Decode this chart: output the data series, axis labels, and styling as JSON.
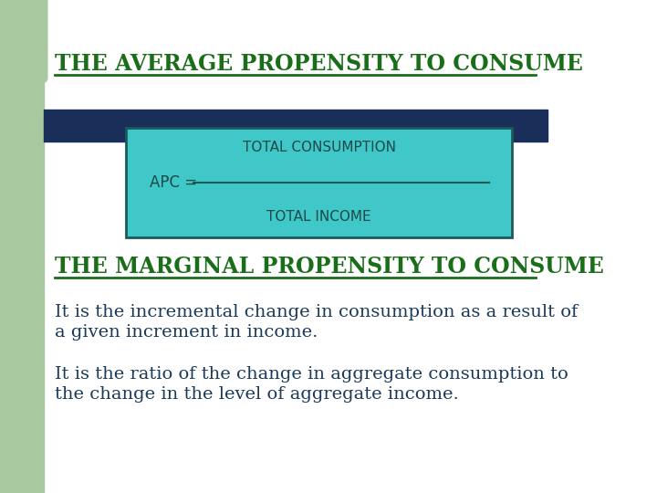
{
  "bg_color": "#ffffff",
  "left_bar_color": "#a8c8a0",
  "title1": "THE AVERAGE PROPENSITY TO CONSUME",
  "title1_color": "#1a6e1a",
  "title1_underline": true,
  "dark_bar_color": "#1a2e5a",
  "box_bg_color": "#40c8c8",
  "box_border_color": "#1a5a5a",
  "apc_label": "APC = ",
  "numerator": "TOTAL CONSUMPTION",
  "denominator": "TOTAL INCOME",
  "fraction_line_color": "#1a5a5a",
  "box_text_color": "#1a4a4a",
  "title2": "THE MARGINAL PROPENSITY TO CONSUME",
  "title2_color": "#1a6e1a",
  "title2_underline": true,
  "body_text_color": "#1a3a5a",
  "para1_line1": "It is the incremental change in consumption as a result of",
  "para1_line2": "a given increment in income.",
  "para2_line1": "It is the ratio of the change in aggregate consumption to",
  "para2_line2": "the change in the level of aggregate income.",
  "font_size_title": 17,
  "font_size_box": 11,
  "font_size_body": 14
}
